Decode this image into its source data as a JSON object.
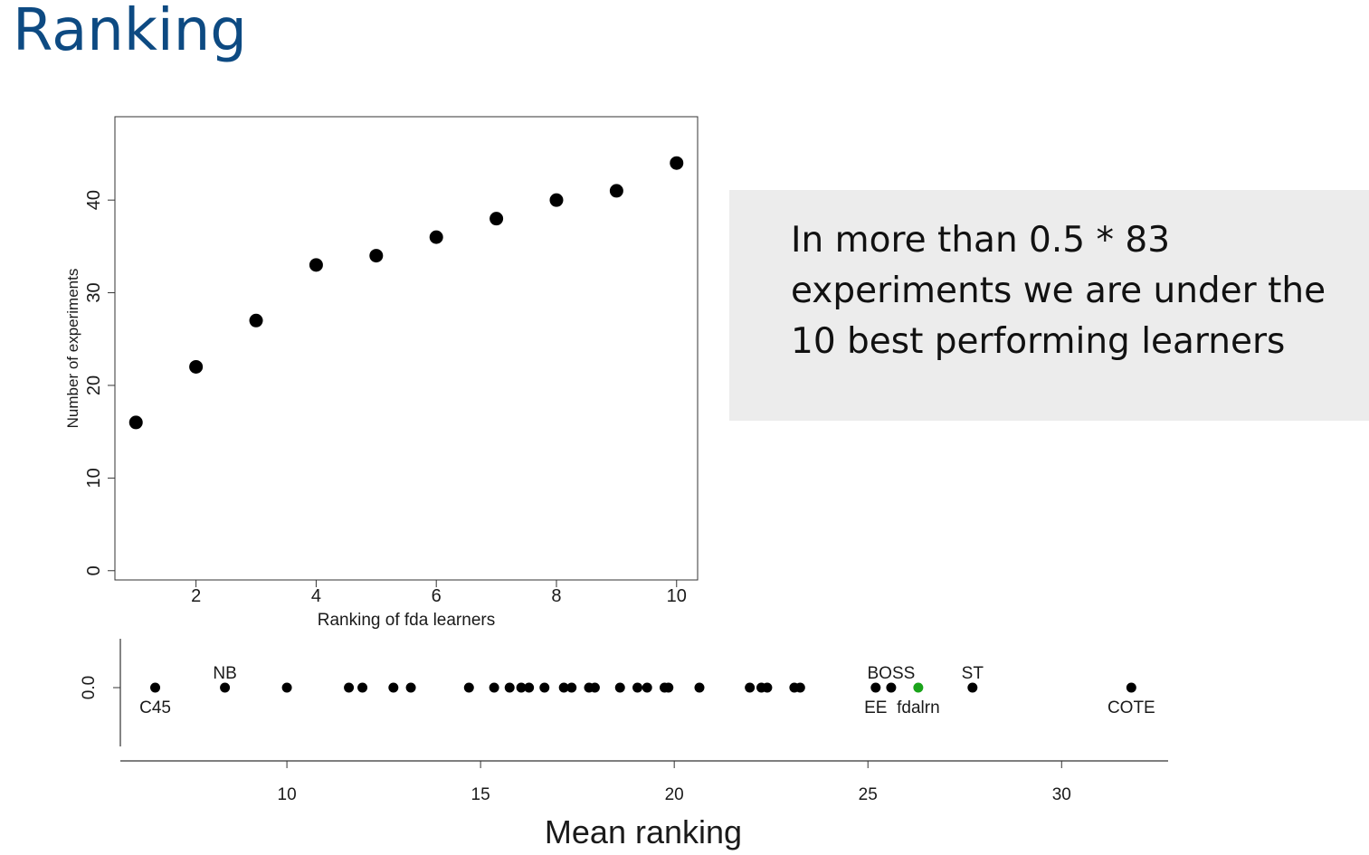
{
  "slide": {
    "title": "Ranking"
  },
  "callout": {
    "text": "In more than 0.5 * 83 experiments we are under the 10 best performing learners"
  },
  "colors": {
    "title": "#0d4a82",
    "callout_bg": "#ececec",
    "highlight_point": "#1aa31a"
  },
  "chart_data": [
    {
      "type": "scatter",
      "title": "",
      "xlabel": "Ranking of fda learners",
      "ylabel": "Number of experiments",
      "xlim": [
        0.65,
        10.35
      ],
      "ylim": [
        -1,
        49
      ],
      "xticks": [
        2,
        4,
        6,
        8,
        10
      ],
      "yticks": [
        0,
        10,
        20,
        30,
        40
      ],
      "grid": false,
      "series": [
        {
          "x": [
            1,
            2,
            3,
            4,
            5,
            6,
            7,
            8,
            9,
            10
          ],
          "y": [
            16,
            22,
            27,
            33,
            34,
            36,
            38,
            40,
            41,
            44
          ]
        }
      ]
    },
    {
      "type": "scatter",
      "title": "",
      "xlabel": "Mean ranking",
      "ylabel": "",
      "xlim": [
        5.7,
        32.75
      ],
      "yticks": [
        0.0
      ],
      "xticks": [
        10,
        15,
        20,
        25,
        30
      ],
      "grid": false,
      "series": [
        {
          "x": [
            6.6,
            8.4,
            10.0,
            11.6,
            11.95,
            12.75,
            13.2,
            14.7,
            15.35,
            15.75,
            16.05,
            16.25,
            16.65,
            17.15,
            17.35,
            17.8,
            17.95,
            18.6,
            19.05,
            19.3,
            19.75,
            19.85,
            20.65,
            21.95,
            22.25,
            22.4,
            23.1,
            23.25,
            25.2,
            25.6,
            27.7,
            31.8
          ],
          "y": [
            0,
            0,
            0,
            0,
            0,
            0,
            0,
            0,
            0,
            0,
            0,
            0,
            0,
            0,
            0,
            0,
            0,
            0,
            0,
            0,
            0,
            0,
            0,
            0,
            0,
            0,
            0,
            0,
            0,
            0,
            0,
            0
          ]
        },
        {
          "x": [
            26.3
          ],
          "y": [
            0
          ]
        }
      ],
      "annotations": [
        {
          "label": "C45",
          "x": 6.6,
          "position": "below"
        },
        {
          "label": "NB",
          "x": 8.4,
          "position": "above"
        },
        {
          "label": "BOSS",
          "x": 25.6,
          "position": "above"
        },
        {
          "label": "EE",
          "x": 25.2,
          "position": "below"
        },
        {
          "label": "fdalrn",
          "x": 26.3,
          "position": "below"
        },
        {
          "label": "ST",
          "x": 27.7,
          "position": "above"
        },
        {
          "label": "COTE",
          "x": 31.8,
          "position": "below"
        }
      ]
    }
  ]
}
